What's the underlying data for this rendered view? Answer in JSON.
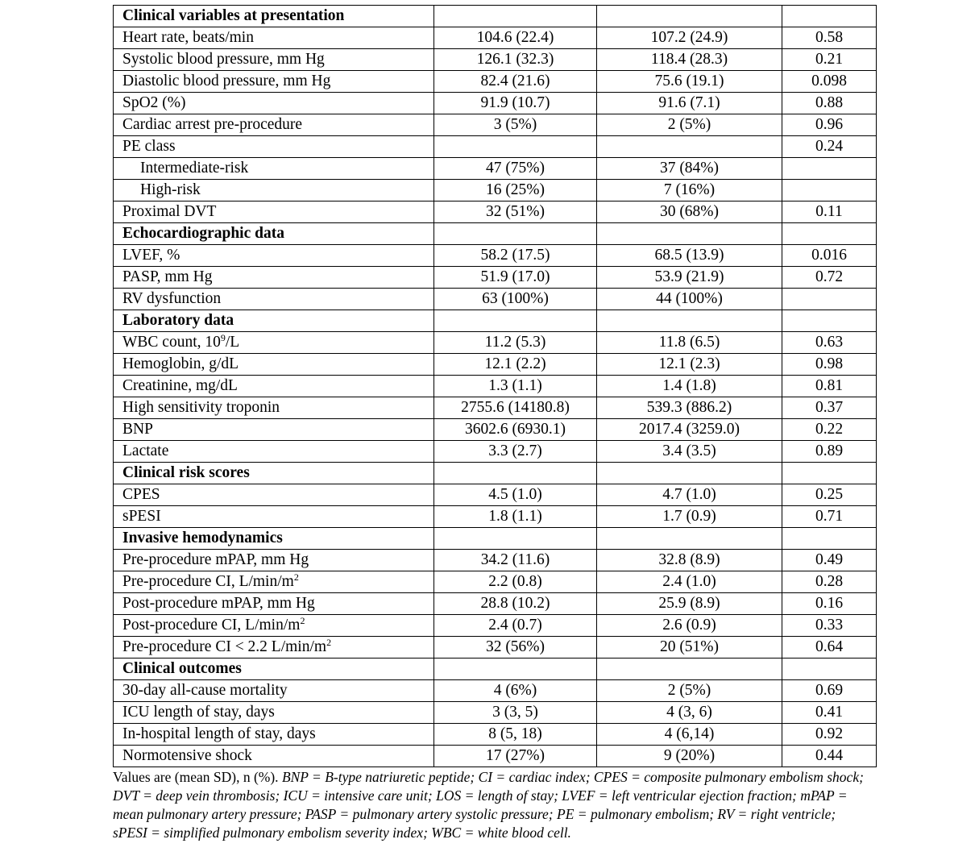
{
  "rows": [
    {
      "type": "section",
      "label": "Clinical variables at presentation"
    },
    {
      "label": "Heart rate, beats/min",
      "a": "104.6 (22.4)",
      "b": "107.2 (24.9)",
      "p": "0.58"
    },
    {
      "label": "Systolic blood pressure, mm Hg",
      "a": "126.1 (32.3)",
      "b": "118.4 (28.3)",
      "p": "0.21"
    },
    {
      "label": "Diastolic blood pressure, mm Hg",
      "a": "82.4 (21.6)",
      "b": "75.6 (19.1)",
      "p": "0.098"
    },
    {
      "label": "SpO2 (%)",
      "a": "91.9 (10.7)",
      "b": "91.6 (7.1)",
      "p": "0.88"
    },
    {
      "label": "Cardiac arrest pre-procedure",
      "a": "3 (5%)",
      "b": "2 (5%)",
      "p": "0.96"
    },
    {
      "label": "PE class",
      "a": "",
      "b": "",
      "p": "0.24"
    },
    {
      "label": "Intermediate-risk",
      "indent": true,
      "a": "47 (75%)",
      "b": "37 (84%)",
      "p": ""
    },
    {
      "label": "High-risk",
      "indent": true,
      "a": "16 (25%)",
      "b": "7 (16%)",
      "p": ""
    },
    {
      "label": "Proximal DVT",
      "a": "32 (51%)",
      "b": "30 (68%)",
      "p": "0.11"
    },
    {
      "type": "section",
      "label": "Echocardiographic data"
    },
    {
      "label": "LVEF, %",
      "a": "58.2 (17.5)",
      "b": "68.5 (13.9)",
      "p": "0.016"
    },
    {
      "label": "PASP, mm Hg",
      "a": "51.9 (17.0)",
      "b": "53.9 (21.9)",
      "p": "0.72"
    },
    {
      "label": "RV dysfunction",
      "a": "63 (100%)",
      "b": "44 (100%)",
      "p": ""
    },
    {
      "type": "section",
      "label": "Laboratory data"
    },
    {
      "label": "WBC count, 10",
      "sup": "9",
      "suffix": "/L",
      "a": "11.2 (5.3)",
      "b": "11.8 (6.5)",
      "p": "0.63"
    },
    {
      "label": "Hemoglobin, g/dL",
      "a": "12.1 (2.2)",
      "b": "12.1 (2.3)",
      "p": "0.98"
    },
    {
      "label": "Creatinine, mg/dL",
      "a": "1.3 (1.1)",
      "b": "1.4 (1.8)",
      "p": "0.81"
    },
    {
      "label": "High sensitivity troponin",
      "a": "2755.6 (14180.8)",
      "b": "539.3 (886.2)",
      "p": "0.37"
    },
    {
      "label": "BNP",
      "a": "3602.6 (6930.1)",
      "b": "2017.4 (3259.0)",
      "p": "0.22"
    },
    {
      "label": "Lactate",
      "a": "3.3 (2.7)",
      "b": "3.4 (3.5)",
      "p": "0.89"
    },
    {
      "type": "section",
      "label": "Clinical risk scores"
    },
    {
      "label": "CPES",
      "a": "4.5 (1.0)",
      "b": "4.7 (1.0)",
      "p": "0.25"
    },
    {
      "label": "sPESI",
      "a": "1.8 (1.1)",
      "b": "1.7 (0.9)",
      "p": "0.71"
    },
    {
      "type": "section",
      "label": "Invasive hemodynamics"
    },
    {
      "label": "Pre-procedure mPAP, mm Hg",
      "a": "34.2 (11.6)",
      "b": "32.8 (8.9)",
      "p": "0.49"
    },
    {
      "label": "Pre-procedure CI, L/min/m",
      "sup": "2",
      "a": "2.2 (0.8)",
      "b": "2.4 (1.0)",
      "p": "0.28"
    },
    {
      "label": "Post-procedure mPAP, mm Hg",
      "a": "28.8 (10.2)",
      "b": "25.9 (8.9)",
      "p": "0.16"
    },
    {
      "label": "Post-procedure CI, L/min/m",
      "sup": "2",
      "a": "2.4 (0.7)",
      "b": "2.6 (0.9)",
      "p": "0.33"
    },
    {
      "label": "Pre-procedure CI < 2.2 L/min/m",
      "sup": "2",
      "a": "32 (56%)",
      "b": "20 (51%)",
      "p": "0.64"
    },
    {
      "type": "section",
      "label": "Clinical outcomes"
    },
    {
      "label": "30-day all-cause mortality",
      "a": "4 (6%)",
      "b": "2 (5%)",
      "p": "0.69"
    },
    {
      "label": "ICU length of stay, days",
      "a": "3 (3, 5)",
      "b": "4 (3, 6)",
      "p": "0.41"
    },
    {
      "label": "In-hospital length of stay, days",
      "a": "8 (5, 18)",
      "b": "4 (6,14)",
      "p": "0.92"
    },
    {
      "label": "Normotensive shock",
      "a": "17 (27%)",
      "b": "9 (20%)",
      "p": "0.44"
    }
  ],
  "footnote": {
    "plain": "Values are (mean SD), n (%). ",
    "italic": "BNP = B-type natriuretic peptide; CI = cardiac index; CPES = composite pulmonary embolism shock; DVT = deep vein thrombosis; ICU = intensive care unit; LOS = length of stay; LVEF = left ventricular ejection fraction; mPAP = mean pulmonary artery pressure; PASP = pulmonary artery systolic pressure; PE = pulmonary embolism; RV = right ventricle; sPESI = simplified pulmonary embolism severity index; WBC = white blood cell."
  }
}
